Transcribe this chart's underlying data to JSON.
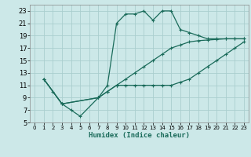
{
  "xlabel": "Humidex (Indice chaleur)",
  "bg_color": "#cce8e8",
  "grid_color": "#aacece",
  "line_color": "#1a6b5a",
  "xlim": [
    -0.5,
    23.5
  ],
  "ylim": [
    5,
    24
  ],
  "xticks": [
    0,
    1,
    2,
    3,
    4,
    5,
    6,
    7,
    8,
    9,
    10,
    11,
    12,
    13,
    14,
    15,
    16,
    17,
    18,
    19,
    20,
    21,
    22,
    23
  ],
  "yticks": [
    5,
    7,
    9,
    11,
    13,
    15,
    17,
    19,
    21,
    23
  ],
  "series": [
    {
      "x": [
        1,
        2,
        3,
        4,
        5,
        7,
        8,
        9,
        10,
        11,
        12,
        13,
        14,
        15,
        16,
        17,
        18,
        19,
        20,
        21,
        22,
        23
      ],
      "y": [
        12,
        10,
        8,
        7,
        6,
        9,
        11,
        21,
        22.5,
        22.5,
        23,
        21.5,
        23,
        23,
        20,
        19.5,
        19,
        18.5,
        18.5,
        18.5,
        18.5,
        18.5
      ]
    },
    {
      "x": [
        1,
        3,
        7,
        8,
        9,
        10,
        11,
        12,
        13,
        14,
        15,
        16,
        17,
        18,
        19,
        20,
        21,
        22,
        23
      ],
      "y": [
        12,
        8,
        9,
        10,
        11,
        11,
        11,
        11,
        11,
        11,
        11,
        11.5,
        12,
        13,
        14,
        15,
        16,
        17,
        18
      ]
    },
    {
      "x": [
        1,
        3,
        7,
        8,
        9,
        10,
        11,
        12,
        13,
        14,
        15,
        16,
        17,
        18,
        19,
        20,
        21,
        22,
        23
      ],
      "y": [
        12,
        8,
        9,
        10,
        11,
        12,
        13,
        14,
        15,
        16,
        17,
        17.5,
        18,
        18.2,
        18.3,
        18.4,
        18.5,
        18.5,
        18.5
      ]
    }
  ]
}
